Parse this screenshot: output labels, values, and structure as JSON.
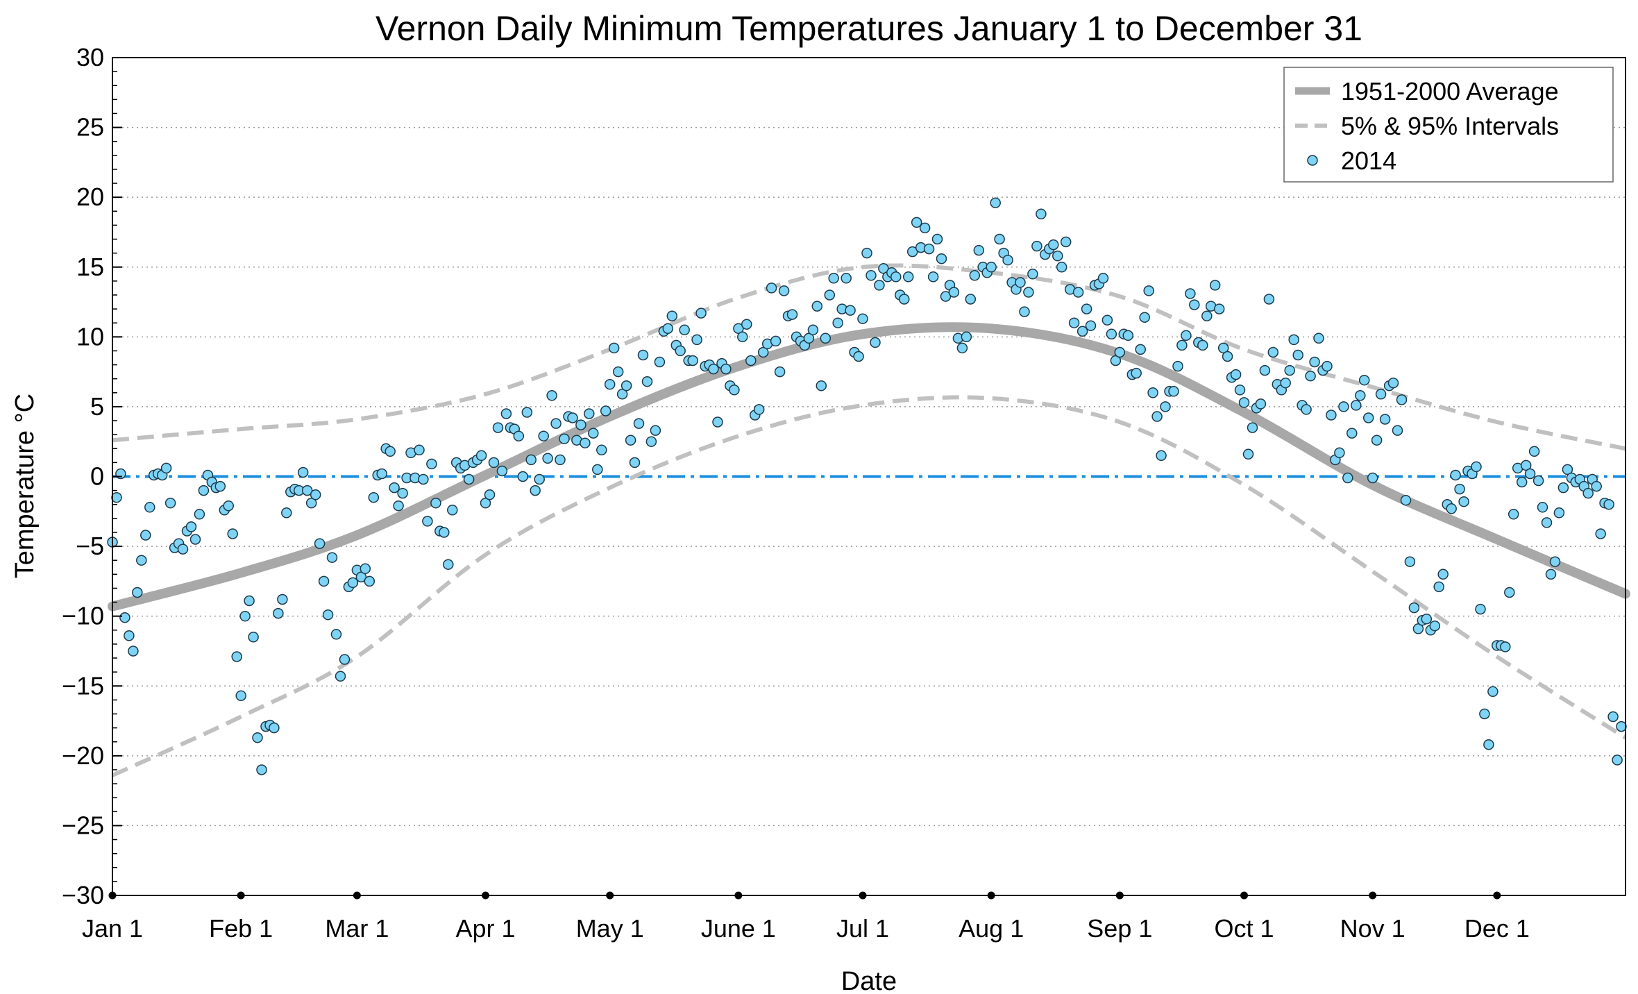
{
  "chart_data": {
    "type": "scatter",
    "title": "Vernon Daily Minimum Temperatures January 1 to December 31",
    "xlabel": "Date",
    "ylabel": "Temperature °C",
    "ylim": [
      -30,
      30
    ],
    "y_ticks": [
      30,
      25,
      20,
      15,
      10,
      5,
      0,
      -5,
      -10,
      -15,
      -20,
      -25,
      -30
    ],
    "x_tick_labels": [
      "Jan 1",
      "Feb 1",
      "Mar 1",
      "Apr 1",
      "May 1",
      "June 1",
      "Jul 1",
      "Aug 1",
      "Sep 1",
      "Oct 1",
      "Nov 1",
      "Dec 1"
    ],
    "x_tick_days": [
      1,
      32,
      60,
      91,
      121,
      152,
      182,
      213,
      244,
      274,
      305,
      335
    ],
    "xlim": [
      1,
      366
    ],
    "grid": "horizontal dotted",
    "legend_position": "top-right",
    "reference_line": {
      "value": 0,
      "color": "#1a8fe0",
      "style": "dash-dot"
    },
    "series": [
      {
        "name": "1951-2000 Average",
        "style": "thick-solid",
        "color": "#a8a8a8",
        "days": [
          1,
          32,
          60,
          91,
          121,
          152,
          182,
          213,
          244,
          274,
          305,
          335,
          366
        ],
        "values": [
          -9.3,
          -6.9,
          -4.2,
          0.1,
          4.3,
          7.9,
          10.2,
          10.6,
          8.8,
          4.6,
          -0.6,
          -4.5,
          -8.4
        ]
      },
      {
        "name": "5% & 95% Intervals",
        "style": "dashed",
        "color": "#c0c0c0",
        "upper_days": [
          1,
          32,
          60,
          91,
          121,
          152,
          182,
          213,
          244,
          274,
          305,
          335,
          366
        ],
        "upper_values": [
          2.6,
          3.4,
          4.1,
          5.9,
          9.1,
          12.8,
          15.0,
          14.6,
          12.9,
          9.1,
          6.4,
          3.9,
          2.0
        ],
        "lower_days": [
          1,
          32,
          60,
          91,
          121,
          152,
          182,
          213,
          244,
          274,
          305,
          335,
          366
        ],
        "lower_values": [
          -21.4,
          -17.2,
          -12.9,
          -5.6,
          -0.8,
          2.9,
          5.1,
          5.6,
          3.9,
          -0.6,
          -6.8,
          -12.9,
          -18.7
        ]
      },
      {
        "name": "2014",
        "style": "markers",
        "color": "#7fd4f5",
        "edge_color": "#1c3a4a",
        "values": [
          -4.7,
          -1.5,
          0.2,
          -10.1,
          -11.4,
          -12.5,
          -8.3,
          -6,
          -4.2,
          -2.2,
          0.1,
          0.2,
          0.1,
          0.6,
          -1.9,
          -5.1,
          -4.8,
          -5.2,
          -3.9,
          -3.6,
          -4.5,
          -2.7,
          -1.0,
          0.1,
          -0.4,
          -0.8,
          -0.7,
          -2.4,
          -2.1,
          -4.1,
          -12.9,
          -15.7,
          -10,
          -8.9,
          -11.5,
          -18.7,
          -21.0,
          -17.9,
          -17.8,
          -18.0,
          -9.8,
          -8.8,
          -2.6,
          -1.1,
          -0.9,
          -1.0,
          0.3,
          -1.0,
          -1.9,
          -1.3,
          -4.8,
          -7.5,
          -9.9,
          -5.8,
          -11.3,
          -14.3,
          -13.1,
          -7.9,
          -7.6,
          -6.7,
          -7.2,
          -6.6,
          -7.5,
          -1.5,
          0.1,
          0.2,
          2.0,
          1.8,
          -0.8,
          -2.1,
          -1.2,
          -0.1,
          1.7,
          -0.1,
          1.9,
          -0.2,
          -3.2,
          0.9,
          -1.9,
          -3.9,
          -4.0,
          -6.3,
          -2.4,
          1.0,
          0.6,
          0.8,
          -0.2,
          1.0,
          1.2,
          1.5,
          -1.9,
          -1.3,
          1.0,
          3.5,
          0.4,
          4.5,
          3.5,
          3.4,
          2.9,
          0.0,
          4.6,
          1.2,
          -1.0,
          -0.2,
          2.9,
          1.3,
          5.8,
          3.8,
          1.2,
          2.7,
          4.3,
          4.2,
          2.6,
          3.7,
          2.4,
          4.5,
          3.1,
          0.5,
          1.9,
          4.7,
          6.6,
          9.2,
          7.5,
          5.9,
          6.5,
          2.6,
          1.0,
          3.8,
          8.7,
          6.8,
          2.5,
          3.3,
          8.2,
          10.4,
          10.6,
          11.5,
          9.4,
          9.0,
          10.5,
          8.3,
          8.3,
          9.8,
          11.7,
          7.9,
          8.0,
          7.7,
          3.9,
          8.1,
          7.7,
          6.5,
          6.2,
          10.6,
          10.0,
          10.9,
          8.3,
          4.4,
          4.8,
          8.9,
          9.5,
          13.5,
          9.7,
          7.5,
          13.3,
          11.5,
          11.6,
          10.0,
          9.7,
          9.4,
          9.9,
          10.5,
          12.2,
          6.5,
          9.9,
          13.0,
          14.2,
          11.0,
          12.0,
          14.2,
          11.9,
          8.9,
          8.6,
          11.3,
          16.0,
          14.4,
          9.6,
          13.7,
          14.9,
          14.3,
          14.6,
          14.3,
          13.0,
          12.7,
          14.3,
          16.1,
          18.2,
          16.4,
          17.8,
          16.3,
          14.3,
          17.0,
          15.6,
          12.9,
          13.7,
          13.2,
          9.9,
          9.2,
          10.0,
          12.7,
          14.4,
          16.2,
          15.0,
          14.6,
          15.0,
          19.6,
          17.0,
          16.0,
          15.5,
          13.9,
          13.4,
          13.9,
          11.8,
          13.2,
          14.5,
          16.5,
          18.8,
          15.9,
          16.3,
          16.6,
          15.8,
          15.0,
          16.8,
          13.4,
          11.0,
          13.2,
          10.4,
          12.0,
          10.8,
          13.7,
          13.8,
          14.2,
          11.2,
          10.2,
          8.3,
          8.9,
          10.2,
          10.1,
          7.3,
          7.4,
          9.1,
          11.4,
          13.3,
          6.0,
          4.3,
          1.5,
          5.0,
          6.1,
          6.1,
          7.9,
          9.4,
          10.1,
          13.1,
          12.3,
          9.6,
          9.4,
          11.5,
          12.2,
          13.7,
          12.0,
          9.2,
          8.6,
          7.1,
          7.3,
          6.2,
          5.3,
          1.6,
          3.5,
          4.9,
          5.2,
          7.6,
          12.7,
          8.9,
          6.6,
          6.2,
          6.7,
          7.6,
          9.8,
          8.7,
          5.1,
          4.8,
          7.2,
          8.2,
          9.9,
          7.6,
          7.9,
          4.4,
          1.2,
          1.7,
          5.0,
          -0.1,
          3.1,
          5.1,
          5.8,
          6.9,
          4.2,
          -0.1,
          2.6,
          5.9,
          4.1,
          6.5,
          6.7,
          3.3,
          5.5,
          -1.7,
          -6.1,
          -9.4,
          -10.9,
          -10.3,
          -10.2,
          -11.0,
          -10.7,
          -7.9,
          -7.0,
          -2.0,
          -2.3,
          0.1,
          -0.9,
          -1.8,
          0.4,
          0.2,
          0.7,
          -9.5,
          -17.0,
          -19.2,
          -15.4,
          -12.1,
          -12.1,
          -12.2,
          -8.3,
          -2.7,
          0.6,
          -0.4,
          0.8,
          0.2,
          1.8,
          -0.3,
          -2.2,
          -3.3,
          -7.0,
          -6.1,
          -2.6,
          -0.8,
          0.5,
          -0.1,
          -0.4,
          -0.2,
          -0.7,
          -1.2,
          -0.2,
          -0.7,
          -4.1,
          -1.9,
          -2.0,
          -17.2,
          -20.3,
          -17.9
        ]
      }
    ]
  }
}
